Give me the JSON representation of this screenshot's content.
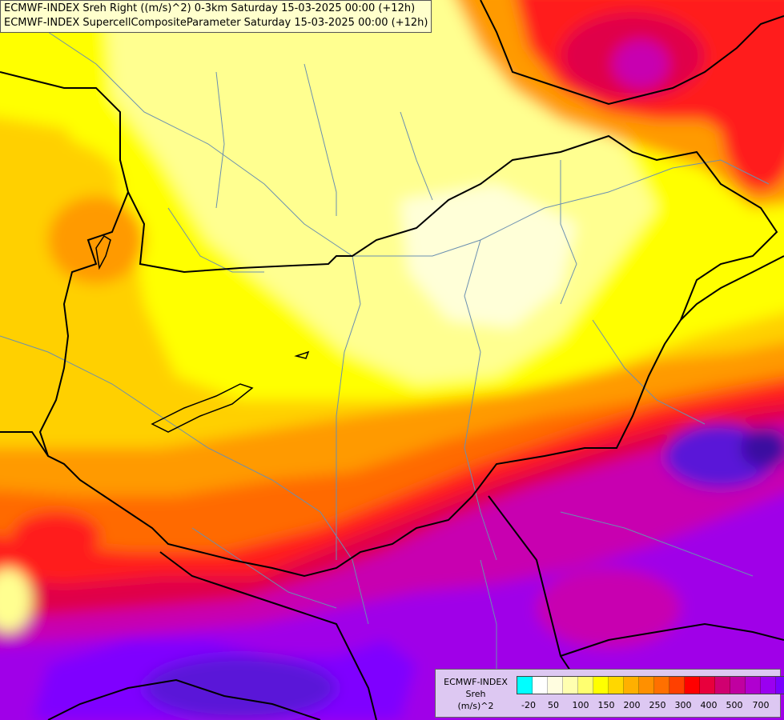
{
  "title_lines": [
    "ECMWF-INDEX Sreh Right ((m/s)^2) 0-3km Saturday 15-03-2025 00:00 (+12h)",
    "ECMWF-INDEX SupercellCompositeParameter Saturday 15-03-2025 00:00 (+12h)"
  ],
  "legend": {
    "label_lines": [
      "ECMWF-INDEX",
      "Sreh",
      "(m/s)^2"
    ],
    "colors": [
      "#00ffff",
      "#ffffff",
      "#fffde0",
      "#ffffb0",
      "#ffff70",
      "#ffff00",
      "#ffd700",
      "#ffb000",
      "#ff9000",
      "#ff7000",
      "#ff4000",
      "#ff0000",
      "#e8003c",
      "#d00070",
      "#c000a0",
      "#b000d0",
      "#9a00f0",
      "#7a00ff",
      "#5a10d0",
      "#3a10a0",
      "#20007a"
    ],
    "ticks": [
      "-20",
      "50",
      "100",
      "150",
      "200",
      "250",
      "300",
      "400",
      "500",
      "700"
    ]
  },
  "map_palette": {
    "pale": "#ffffd8",
    "light_yellow": "#ffff90",
    "yellow": "#ffff00",
    "gold": "#ffd000",
    "orange": "#ff9a00",
    "dark_orange": "#ff6a00",
    "red": "#ff1a1a",
    "crimson": "#e0004a",
    "magenta": "#c800b0",
    "purple": "#a000e8",
    "violet": "#7f00ff",
    "indigo": "#5a12d8",
    "navy_purple": "#3a0aa0",
    "border": "#000000",
    "river": "#6a8fb0"
  }
}
